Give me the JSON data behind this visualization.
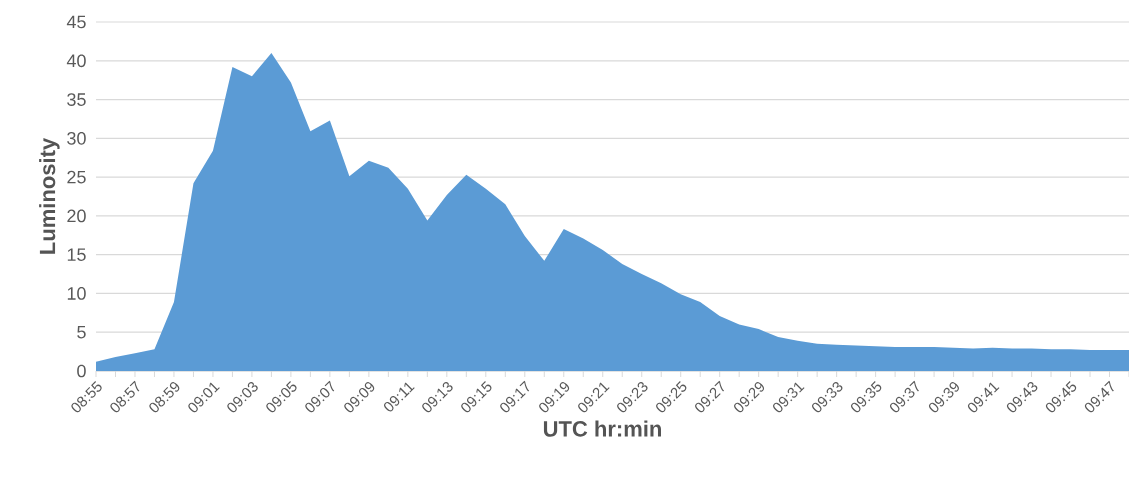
{
  "chart_data": {
    "type": "area",
    "xlabel": "UTC hr:min",
    "ylabel": "Luminosity",
    "categories": [
      "08:55",
      null,
      "08:57",
      null,
      "08:59",
      null,
      "09:01",
      null,
      "09:03",
      null,
      "09:05",
      null,
      "09:07",
      null,
      "09:09",
      null,
      "09:11",
      null,
      "09:13",
      null,
      "09:15",
      null,
      "09:17",
      null,
      "09:19",
      null,
      "09:21",
      null,
      "09:23",
      null,
      "09:25",
      null,
      "09:27",
      null,
      "09:29",
      null,
      "09:31",
      null,
      "09:33",
      null,
      "09:35",
      null,
      "09:37",
      null,
      "09:39",
      null,
      "09:41",
      null,
      "09:43",
      null,
      "09:45",
      null,
      "09:47",
      null
    ],
    "values": [
      1.2,
      1.8,
      2.3,
      2.8,
      8.9,
      24.2,
      28.4,
      39.2,
      38.0,
      41.0,
      37.2,
      30.9,
      32.3,
      25.1,
      27.1,
      26.2,
      23.5,
      19.4,
      22.7,
      25.3,
      23.5,
      21.5,
      17.4,
      14.2,
      18.3,
      17.1,
      15.6,
      13.8,
      12.5,
      11.3,
      9.9,
      8.9,
      7.1,
      6.0,
      5.4,
      4.4,
      3.9,
      3.5,
      3.4,
      3.3,
      3.2,
      3.1,
      3.1,
      3.1,
      3.0,
      2.9,
      3.0,
      2.9,
      2.9,
      2.8,
      2.8,
      2.7,
      2.7,
      2.7
    ],
    "color": "#5b9bd5",
    "ylim": [
      0,
      45
    ],
    "yticks": [
      0,
      5,
      10,
      15,
      20,
      25,
      30,
      35,
      40,
      45
    ],
    "grid": "y"
  }
}
